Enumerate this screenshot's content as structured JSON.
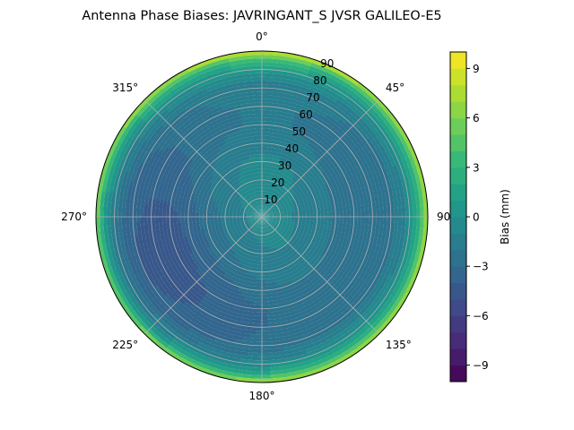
{
  "chart_data": {
    "type": "heatmap",
    "projection": "polar",
    "title": "Antenna Phase Biases: JAVRINGANT_S    JVSR GALILEO-E5",
    "angle_ticks": [
      {
        "deg": 0,
        "label": "0°"
      },
      {
        "deg": 45,
        "label": "45°"
      },
      {
        "deg": 90,
        "label": "90"
      },
      {
        "deg": 135,
        "label": "135°"
      },
      {
        "deg": 180,
        "label": "180°"
      },
      {
        "deg": 225,
        "label": "225°"
      },
      {
        "deg": 270,
        "label": "270°"
      },
      {
        "deg": 315,
        "label": "315°"
      }
    ],
    "radial_ticks": [
      10,
      20,
      30,
      40,
      50,
      60,
      70,
      80,
      90
    ],
    "radial_range": [
      0,
      90
    ],
    "grid": true,
    "colorbar": {
      "label": "Bias (mm)",
      "range": [
        -10,
        10
      ],
      "ticks": [
        -9,
        -6,
        -3,
        0,
        3,
        6,
        9
      ],
      "tick_labels": [
        "−9",
        "−6",
        "−3",
        "0",
        "3",
        "6",
        "9"
      ],
      "levels": 20,
      "colormap": "viridis"
    },
    "radial_profile": [
      {
        "r": 0,
        "bias": -0.5
      },
      {
        "r": 10,
        "bias": -0.8
      },
      {
        "r": 20,
        "bias": -1.2
      },
      {
        "r": 30,
        "bias": -1.6
      },
      {
        "r": 40,
        "bias": -2.4
      },
      {
        "r": 50,
        "bias": -3.0
      },
      {
        "r": 60,
        "bias": -3.0
      },
      {
        "r": 70,
        "bias": -2.6
      },
      {
        "r": 75,
        "bias": -1.8
      },
      {
        "r": 80,
        "bias": -0.5
      },
      {
        "r": 85,
        "bias": 2.0
      },
      {
        "r": 88,
        "bias": 5.0
      },
      {
        "r": 90,
        "bias": 7.5
      }
    ],
    "azimuth_modulation_mm": 1.5
  }
}
